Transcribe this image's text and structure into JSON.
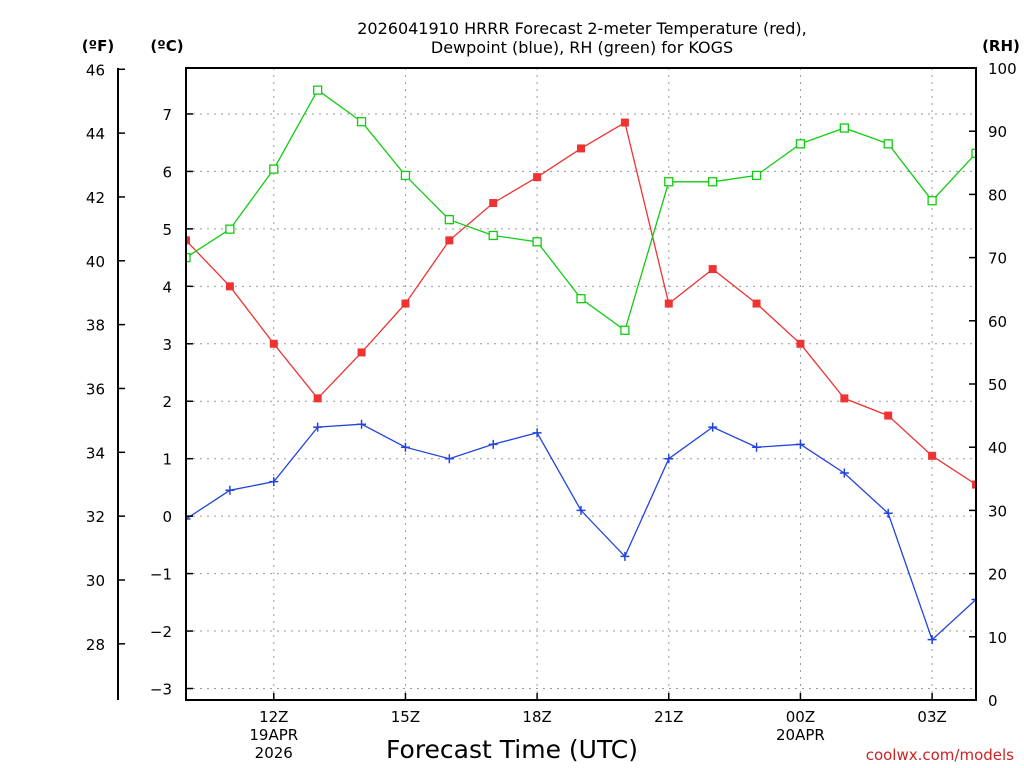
{
  "chart_data": {
    "type": "line",
    "title_lines": [
      "2026041910 HRRR Forecast 2-meter Temperature (red),",
      "Dewpoint (blue), RH (green) for KOGS"
    ],
    "xlabel": "Forecast Time (UTC)",
    "credit": "coolwx.com/models",
    "units": {
      "fahrenheit": "(ºF)",
      "celsius": "(ºC)",
      "rh": "(RH)"
    },
    "x_hours": [
      10,
      11,
      12,
      13,
      14,
      15,
      16,
      17,
      18,
      19,
      20,
      21,
      22,
      23,
      24,
      25,
      26,
      27,
      28
    ],
    "xlim": [
      10,
      28
    ],
    "x_ticks": [
      {
        "hour": 12,
        "lines": [
          "12Z",
          "19APR",
          "2026"
        ]
      },
      {
        "hour": 15,
        "lines": [
          "15Z"
        ]
      },
      {
        "hour": 18,
        "lines": [
          "18Z"
        ]
      },
      {
        "hour": 21,
        "lines": [
          "21Z"
        ]
      },
      {
        "hour": 24,
        "lines": [
          "00Z",
          "20APR"
        ]
      },
      {
        "hour": 27,
        "lines": [
          "03Z"
        ]
      }
    ],
    "celsius_axis": {
      "range": [
        -3.2,
        7.8
      ],
      "ticks": [
        "7",
        "6",
        "5",
        "4",
        "3",
        "2",
        "1",
        "0",
        "−1",
        "−2",
        "−3"
      ]
    },
    "fahrenheit_axis": {
      "range": [
        26.24,
        46.04
      ],
      "ticks": [
        "46",
        "44",
        "42",
        "40",
        "38",
        "36",
        "34",
        "32",
        "30",
        "28"
      ]
    },
    "rh_axis": {
      "range": [
        0,
        100
      ],
      "ticks": [
        "100",
        "90",
        "80",
        "70",
        "60",
        "50",
        "40",
        "30",
        "20",
        "10",
        "0"
      ]
    },
    "series": [
      {
        "name": "Temperature",
        "axis": "celsius",
        "color": "#ee3333",
        "marker": "filled-square",
        "values": [
          4.8,
          4.0,
          3.0,
          2.05,
          2.85,
          3.7,
          4.8,
          5.45,
          5.9,
          6.4,
          6.85,
          3.7,
          4.3,
          3.7,
          3.0,
          2.05,
          1.75,
          1.05,
          0.55
        ]
      },
      {
        "name": "Dewpoint",
        "axis": "celsius",
        "color": "#2244dd",
        "marker": "plus",
        "values": [
          -0.05,
          0.45,
          0.6,
          1.55,
          1.6,
          1.2,
          1.0,
          1.25,
          1.45,
          0.1,
          -0.7,
          1.0,
          1.55,
          1.2,
          1.25,
          0.75,
          0.05,
          -2.15,
          -1.45
        ]
      },
      {
        "name": "RH",
        "axis": "rh",
        "color": "#11cc11",
        "marker": "open-square",
        "values": [
          70,
          74.5,
          84,
          96.5,
          91.5,
          83,
          76,
          73.5,
          72.5,
          63.5,
          58.5,
          82,
          82,
          83,
          88,
          90.5,
          88,
          79,
          86.5
        ]
      }
    ]
  }
}
